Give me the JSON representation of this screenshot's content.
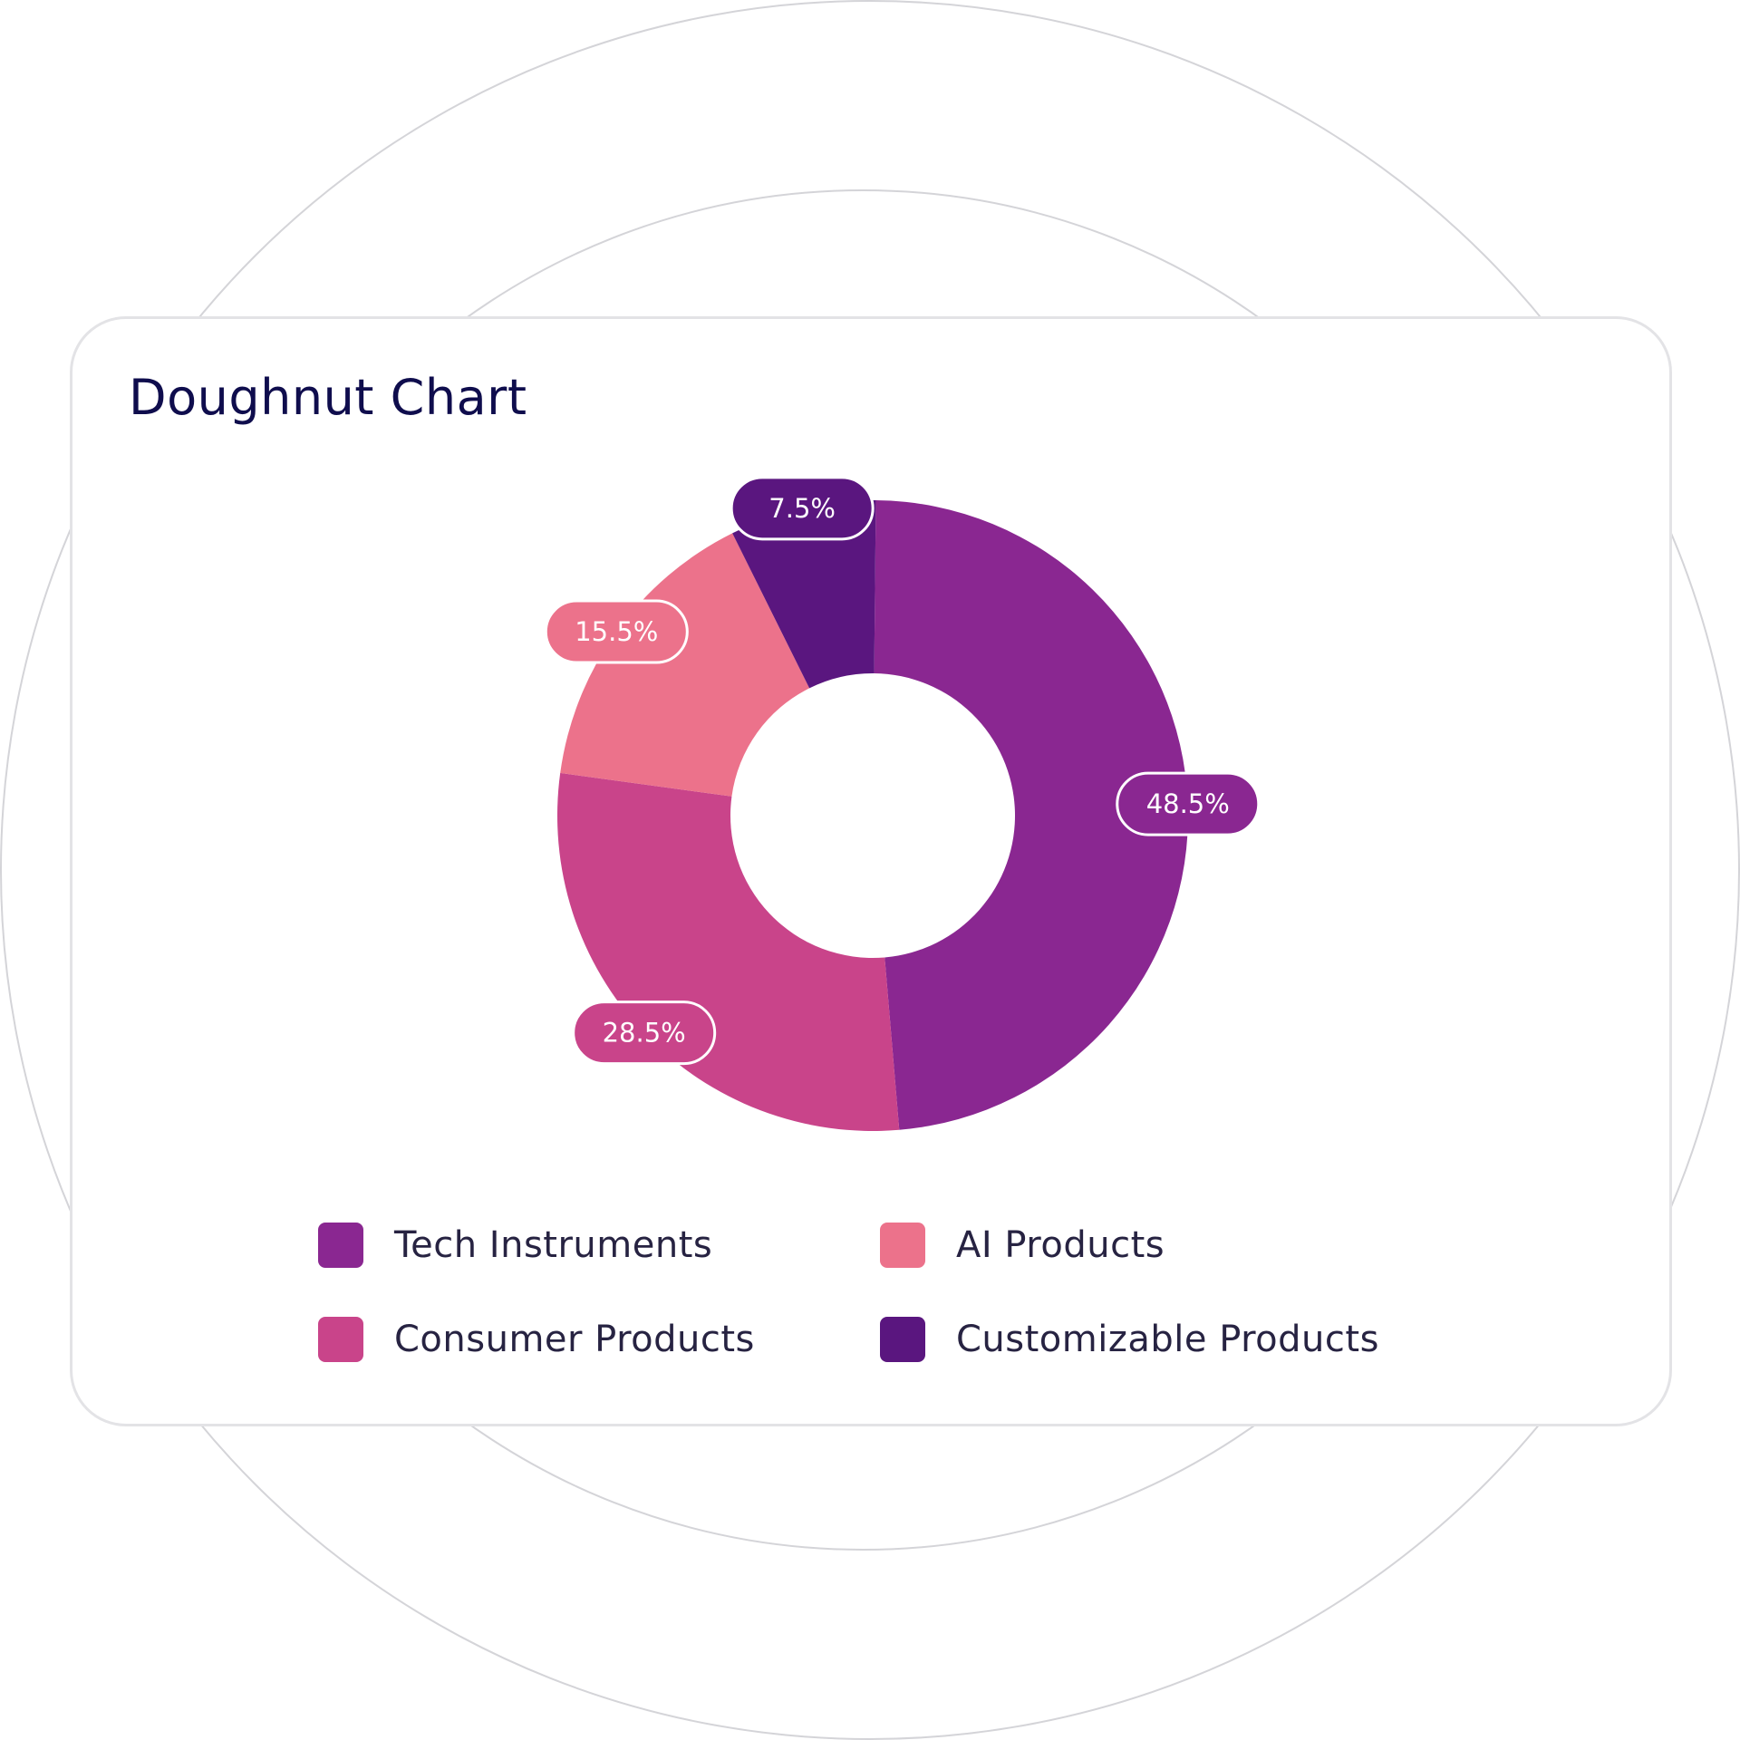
{
  "title": "Doughnut Chart",
  "colors": {
    "background_ring": "#d4d4d8",
    "card_border": "#e3e3e6",
    "title": "#0f0d4d",
    "legend_text": "#272342"
  },
  "chart_data": {
    "type": "pie",
    "variant": "doughnut",
    "title": "Doughnut Chart",
    "categories": [
      "Tech Instruments",
      "AI Products",
      "Consumer Products",
      "Customizable Products"
    ],
    "values": [
      48.5,
      15.5,
      28.5,
      7.5
    ],
    "value_labels": [
      "48.5%",
      "15.5%",
      "28.5%",
      "7.5%"
    ],
    "colors": [
      "#8a2791",
      "#ec728b",
      "#c9448a",
      "#5a167f"
    ],
    "slice_order_clockwise_from_top": [
      "Tech Instruments",
      "Consumer Products",
      "AI Products",
      "Customizable Products"
    ],
    "legend": {
      "placement": "bottom",
      "entries": [
        {
          "label": "Tech Instruments",
          "color": "#8a2791"
        },
        {
          "label": "AI Products",
          "color": "#ec728b"
        },
        {
          "label": "Consumer Products",
          "color": "#c9448a"
        },
        {
          "label": "Customizable Products",
          "color": "#5a167f"
        }
      ]
    }
  }
}
